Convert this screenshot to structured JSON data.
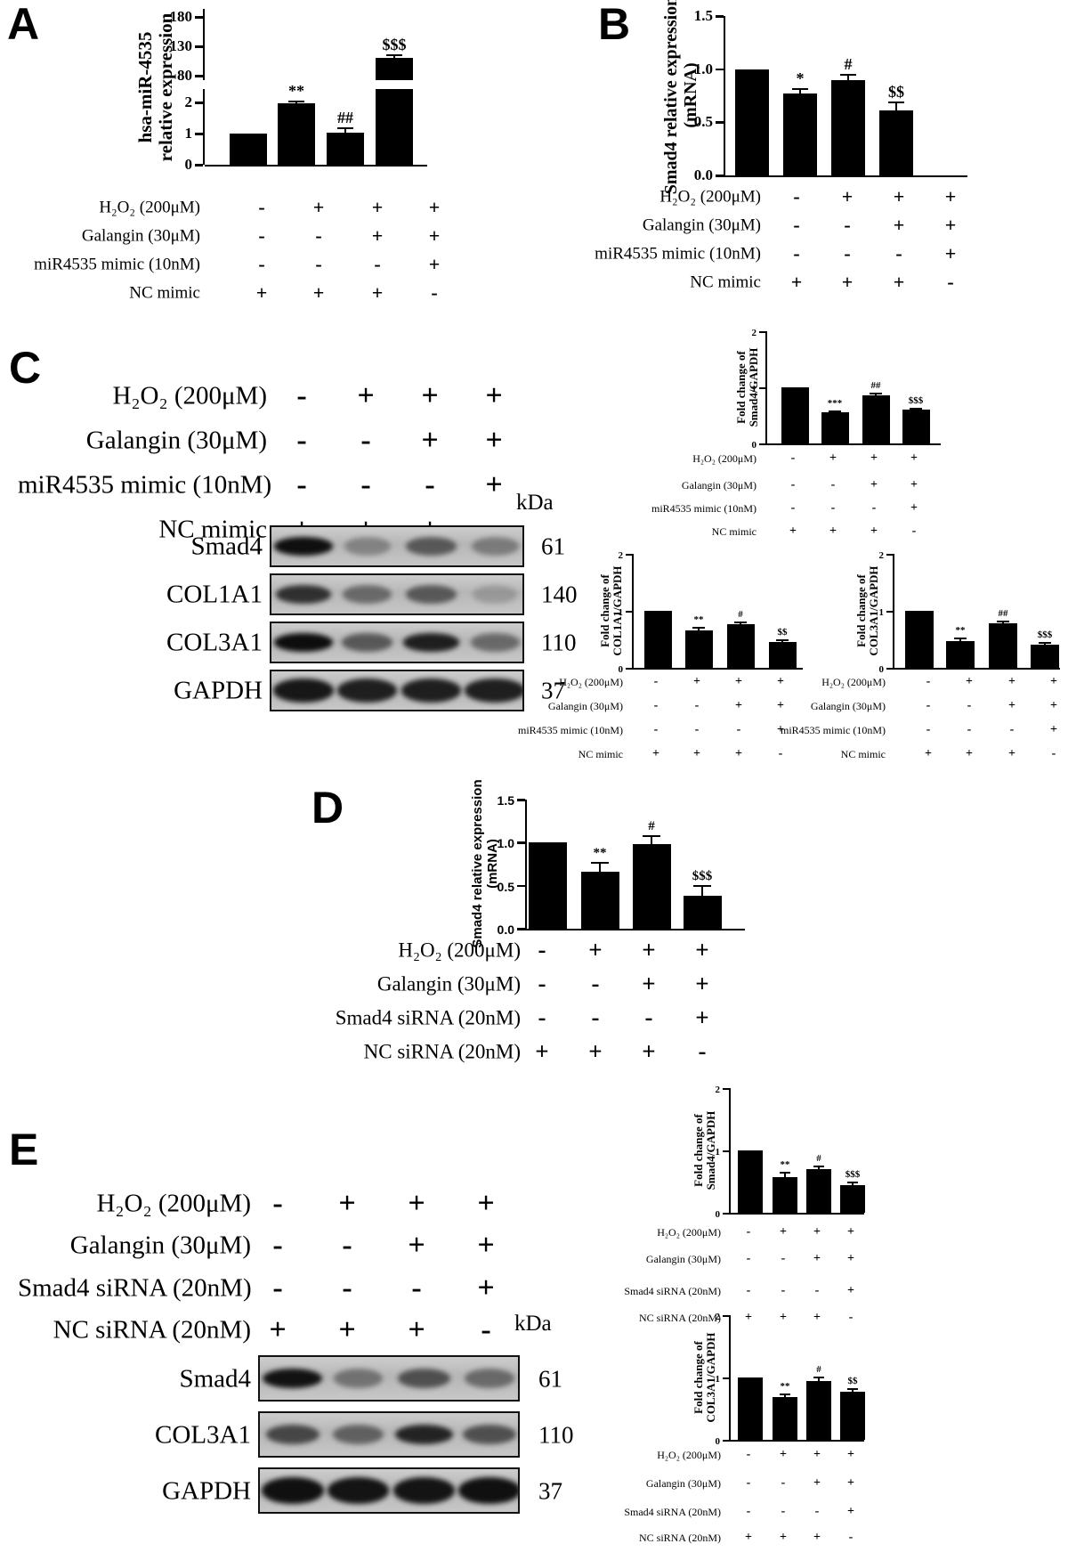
{
  "figure": {
    "panel_labels": [
      "A",
      "B",
      "C",
      "D",
      "E"
    ]
  },
  "treatments": {
    "mimic": [
      {
        "label": "H₂O₂ (200μM)",
        "signs": [
          "-",
          "+",
          "+",
          "+"
        ]
      },
      {
        "label": "Galangin (30μM)",
        "signs": [
          "-",
          "-",
          "+",
          "+"
        ]
      },
      {
        "label": "miR4535 mimic (10nM)",
        "signs": [
          "-",
          "-",
          "-",
          "+"
        ]
      },
      {
        "label": "NC mimic",
        "signs": [
          "+",
          "+",
          "+",
          "-"
        ]
      }
    ],
    "sirna": [
      {
        "label": "H₂O₂ (200μM)",
        "signs": [
          "-",
          "+",
          "+",
          "+"
        ]
      },
      {
        "label": "Galangin (30μM)",
        "signs": [
          "-",
          "-",
          "+",
          "+"
        ]
      },
      {
        "label": "Smad4 siRNA (20nM)",
        "signs": [
          "-",
          "-",
          "-",
          "+"
        ]
      },
      {
        "label": "NC siRNA (20nM)",
        "signs": [
          "+",
          "+",
          "+",
          "-"
        ]
      }
    ]
  },
  "chart_data": [
    {
      "id": "A",
      "type": "bar",
      "broken_axis": true,
      "ylabel": "hsa-miR-4535\nrelative expression",
      "yticks_lower": [
        "0",
        "1",
        "2"
      ],
      "yticks_upper": [
        "80",
        "130",
        "180"
      ],
      "lower_ylim": [
        0,
        2.4
      ],
      "upper_ylim": [
        80,
        195
      ],
      "values": [
        1.0,
        1.97,
        1.03,
        110
      ],
      "errors": [
        0,
        0.06,
        0.15,
        5
      ],
      "sig_marks": [
        "",
        "**",
        "##",
        "$$$"
      ],
      "conditions": "mimic"
    },
    {
      "id": "B",
      "type": "bar",
      "ylabel": "Smad4 relative expression\n(mRNA)",
      "yticks": [
        "0.0",
        "0.5",
        "1.0",
        "1.5"
      ],
      "ylim": [
        0,
        1.5
      ],
      "values": [
        1.0,
        0.77,
        0.9,
        0.61
      ],
      "errors": [
        0,
        0.04,
        0.05,
        0.08
      ],
      "sig_marks": [
        "",
        "*",
        "#",
        "$$"
      ],
      "conditions": "mimic"
    },
    {
      "id": "C-Smad4",
      "type": "bar",
      "ylabel": "Fold change of\nSmad4/GAPDH",
      "yticks": [
        "0",
        "1",
        "2"
      ],
      "ylim": [
        0,
        2
      ],
      "values": [
        1.0,
        0.55,
        0.85,
        0.6
      ],
      "errors": [
        0,
        0.02,
        0.04,
        0.02
      ],
      "sig_marks": [
        "",
        "***",
        "##",
        "$$$"
      ],
      "conditions": "mimic"
    },
    {
      "id": "C-COL1A1",
      "type": "bar",
      "ylabel": "Fold change of\nCOL1A1/GAPDH",
      "yticks": [
        "0",
        "1",
        "2"
      ],
      "ylim": [
        0,
        2
      ],
      "values": [
        1.0,
        0.65,
        0.77,
        0.45
      ],
      "errors": [
        0,
        0.05,
        0.03,
        0.04
      ],
      "sig_marks": [
        "",
        "**",
        "#",
        "$$"
      ],
      "conditions": "mimic"
    },
    {
      "id": "C-COL3A1",
      "type": "bar",
      "ylabel": "Fold change of\nCOL3A1/GAPDH",
      "yticks": [
        "0",
        "1",
        "2"
      ],
      "ylim": [
        0,
        2
      ],
      "values": [
        1.0,
        0.47,
        0.78,
        0.4
      ],
      "errors": [
        0,
        0.04,
        0.03,
        0.03
      ],
      "sig_marks": [
        "",
        "**",
        "##",
        "$$$"
      ],
      "conditions": "mimic"
    },
    {
      "id": "D",
      "type": "bar",
      "ylabel": "Smad4 relative expression\n(mRNA)",
      "yticks": [
        "0.0",
        "0.5",
        "1.0",
        "1.5"
      ],
      "ylim": [
        0,
        1.5
      ],
      "values": [
        1.0,
        0.66,
        0.98,
        0.38
      ],
      "errors": [
        0,
        0.11,
        0.1,
        0.12
      ],
      "sig_marks": [
        "",
        "**",
        "#",
        "$$$"
      ],
      "conditions": "sirna"
    },
    {
      "id": "E-Smad4",
      "type": "bar",
      "ylabel": "Fold change of\nSmad4/GAPDH",
      "yticks": [
        "0",
        "1",
        "2"
      ],
      "ylim": [
        0,
        2
      ],
      "values": [
        1.0,
        0.57,
        0.7,
        0.44
      ],
      "errors": [
        0,
        0.07,
        0.04,
        0.04
      ],
      "sig_marks": [
        "",
        "**",
        "#",
        "$$$"
      ],
      "conditions": "sirna"
    },
    {
      "id": "E-COL3A1",
      "type": "bar",
      "ylabel": "Fold change of\nCOL3A1/GAPDH",
      "yticks": [
        "0",
        "1",
        "2"
      ],
      "ylim": [
        0,
        2
      ],
      "values": [
        1.0,
        0.68,
        0.95,
        0.77
      ],
      "errors": [
        0,
        0.05,
        0.05,
        0.04
      ],
      "sig_marks": [
        "",
        "**",
        "#",
        "$$"
      ],
      "conditions": "sirna"
    }
  ],
  "blots": {
    "C": {
      "kda_header": "kDa",
      "rows": [
        {
          "label": "Smad4",
          "kda": "61",
          "bands": [
            0.97,
            0.3,
            0.55,
            0.35
          ]
        },
        {
          "label": "COL1A1",
          "kda": "140",
          "bands": [
            0.78,
            0.45,
            0.55,
            0.18
          ]
        },
        {
          "label": "COL3A1",
          "kda": "110",
          "bands": [
            0.98,
            0.55,
            0.88,
            0.45
          ]
        },
        {
          "label": "GAPDH",
          "kda": "37",
          "bands": [
            0.92,
            0.88,
            0.88,
            0.88
          ],
          "thick": true
        }
      ]
    },
    "E": {
      "kda_header": "kDa",
      "rows": [
        {
          "label": "Smad4",
          "kda": "61",
          "bands": [
            0.95,
            0.4,
            0.6,
            0.45
          ]
        },
        {
          "label": "COL3A1",
          "kda": "110",
          "bands": [
            0.65,
            0.5,
            0.85,
            0.6
          ]
        },
        {
          "label": "GAPDH",
          "kda": "37",
          "bands": [
            0.96,
            0.94,
            0.94,
            0.96
          ],
          "thick": true
        }
      ]
    }
  }
}
